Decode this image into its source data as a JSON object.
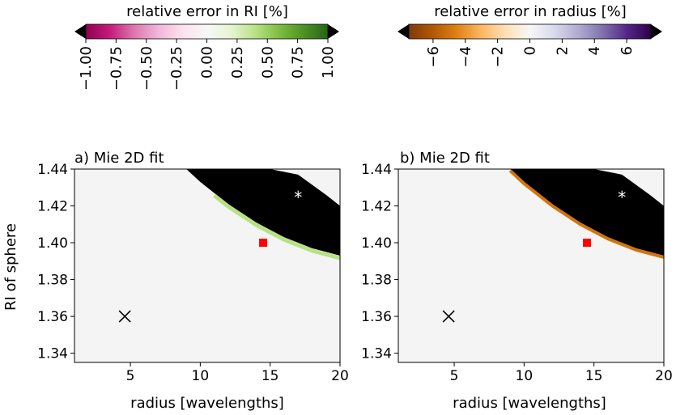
{
  "colorbars": [
    {
      "label": "relative error in RI [%]",
      "ticks": [
        "−1.00",
        "−0.75",
        "−0.50",
        "−0.25",
        "0.00",
        "0.25",
        "0.50",
        "0.75",
        "1.00"
      ],
      "range": [
        -1.0,
        1.0
      ],
      "colormap": "PiYG",
      "stops": [
        "#8e0152",
        "#c51b7d",
        "#de77ae",
        "#f1b6da",
        "#fde0ef",
        "#f7f7f7",
        "#e6f5d0",
        "#b8e186",
        "#7fbc41",
        "#4d9221",
        "#276419"
      ],
      "extend": "both"
    },
    {
      "label": "relative error in radius [%]",
      "ticks": [
        "−6",
        "−4",
        "−2",
        "0",
        "2",
        "4",
        "6"
      ],
      "range": [
        -7.5,
        7.5
      ],
      "colormap": "PuOr",
      "stops": [
        "#7f3b08",
        "#b35806",
        "#e08214",
        "#fdb863",
        "#fee0b6",
        "#f7f7f7",
        "#d8daeb",
        "#b2abd2",
        "#8073ac",
        "#542788",
        "#2d004b"
      ],
      "extend": "both"
    }
  ],
  "chart_data": [
    {
      "type": "heatmap",
      "title": "a) Mie 2D fit",
      "xlabel": "radius [wavelengths]",
      "ylabel": "RI of sphere",
      "xlim": [
        1,
        20
      ],
      "ylim": [
        1.335,
        1.44
      ],
      "xticks": [
        "5",
        "10",
        "15",
        "20"
      ],
      "yticks": [
        "1.34",
        "1.36",
        "1.38",
        "1.40",
        "1.42",
        "1.44"
      ],
      "background_color": "#f4f4f4",
      "failed_region_color": "#000000",
      "failed_region_upper_boundary": [
        [
          9.0,
          1.44
        ],
        [
          12.0,
          1.44
        ],
        [
          13.0,
          1.44
        ],
        [
          15.0,
          1.44
        ],
        [
          17.0,
          1.437
        ],
        [
          19.0,
          1.426
        ],
        [
          20.0,
          1.42
        ]
      ],
      "failed_region_lower_boundary": [
        [
          9.0,
          1.44
        ],
        [
          10.0,
          1.433
        ],
        [
          11.0,
          1.427
        ],
        [
          12.0,
          1.421
        ],
        [
          13.0,
          1.416
        ],
        [
          14.0,
          1.411
        ],
        [
          15.0,
          1.407
        ],
        [
          16.0,
          1.403
        ],
        [
          17.0,
          1.4
        ],
        [
          18.0,
          1.397
        ],
        [
          19.0,
          1.395
        ],
        [
          20.0,
          1.393
        ]
      ],
      "edge_error_value": 0.4,
      "markers": [
        {
          "symbol": "x",
          "x": 4.6,
          "y": 1.36,
          "color": "#000000"
        },
        {
          "symbol": "square",
          "x": 14.5,
          "y": 1.4,
          "color": "#ff0000"
        },
        {
          "symbol": "*",
          "x": 17.0,
          "y": 1.425,
          "color": "#ffffff"
        }
      ]
    },
    {
      "type": "heatmap",
      "title": "b) Mie 2D fit",
      "xlabel": "radius [wavelengths]",
      "ylabel": "",
      "xlim": [
        1,
        20
      ],
      "ylim": [
        1.335,
        1.44
      ],
      "xticks": [
        "5",
        "10",
        "15",
        "20"
      ],
      "yticks": [
        "1.34",
        "1.36",
        "1.38",
        "1.40",
        "1.42",
        "1.44"
      ],
      "background_color": "#f4f4f4",
      "failed_region_color": "#000000",
      "failed_region_upper_boundary": [
        [
          9.0,
          1.44
        ],
        [
          12.0,
          1.44
        ],
        [
          13.0,
          1.44
        ],
        [
          15.0,
          1.44
        ],
        [
          17.0,
          1.437
        ],
        [
          19.0,
          1.426
        ],
        [
          20.0,
          1.42
        ]
      ],
      "failed_region_lower_boundary": [
        [
          9.0,
          1.44
        ],
        [
          10.0,
          1.433
        ],
        [
          11.0,
          1.427
        ],
        [
          12.0,
          1.421
        ],
        [
          13.0,
          1.416
        ],
        [
          14.0,
          1.411
        ],
        [
          15.0,
          1.407
        ],
        [
          16.0,
          1.403
        ],
        [
          17.0,
          1.4
        ],
        [
          18.0,
          1.397
        ],
        [
          19.0,
          1.395
        ],
        [
          20.0,
          1.393
        ]
      ],
      "edge_error_value": -5.0,
      "markers": [
        {
          "symbol": "x",
          "x": 4.6,
          "y": 1.36,
          "color": "#000000"
        },
        {
          "symbol": "square",
          "x": 14.5,
          "y": 1.4,
          "color": "#ff0000"
        },
        {
          "symbol": "*",
          "x": 17.0,
          "y": 1.425,
          "color": "#ffffff"
        }
      ]
    }
  ]
}
